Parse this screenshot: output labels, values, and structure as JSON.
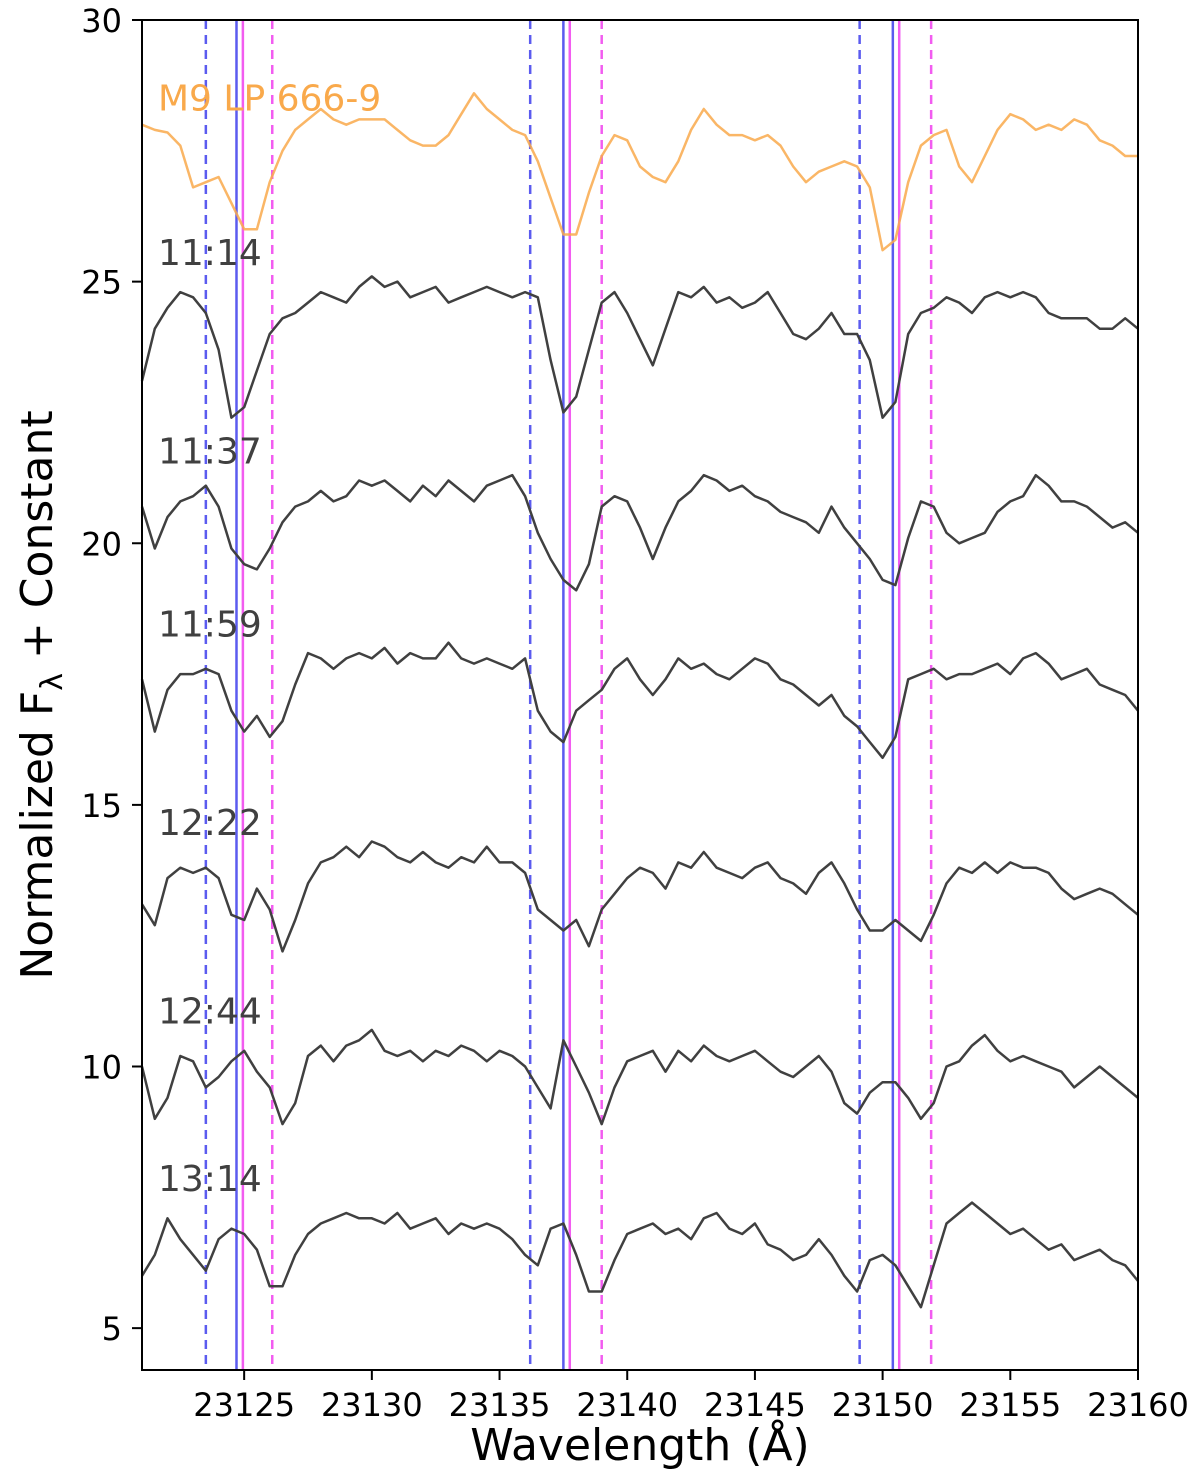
{
  "chart_data": {
    "type": "line",
    "xlabel": "Wavelength (Å)",
    "ylabel": "Normalized F",
    "ylabel_sub": "λ",
    "ylabel_suffix": " + Constant",
    "xlim": [
      23121,
      23160
    ],
    "ylim": [
      4.2,
      30
    ],
    "xticks": [
      23125,
      23130,
      23135,
      23140,
      23145,
      23150,
      23155,
      23160
    ],
    "yticks": [
      5,
      10,
      15,
      20,
      25,
      30
    ],
    "grid": false,
    "colors": {
      "reference": "#f9a94b",
      "spectrum": "#404040",
      "blue_line": "#5b5bef",
      "magenta_line": "#f25cf0"
    },
    "vertical_lines": [
      {
        "x": 23123.5,
        "color": "blue",
        "style": "dashed"
      },
      {
        "x": 23124.7,
        "color": "blue",
        "style": "solid"
      },
      {
        "x": 23124.95,
        "color": "magenta",
        "style": "solid"
      },
      {
        "x": 23126.1,
        "color": "magenta",
        "style": "dashed"
      },
      {
        "x": 23136.2,
        "color": "blue",
        "style": "dashed"
      },
      {
        "x": 23137.5,
        "color": "blue",
        "style": "solid"
      },
      {
        "x": 23137.75,
        "color": "magenta",
        "style": "solid"
      },
      {
        "x": 23139.0,
        "color": "magenta",
        "style": "dashed"
      },
      {
        "x": 23149.1,
        "color": "blue",
        "style": "dashed"
      },
      {
        "x": 23150.4,
        "color": "blue",
        "style": "solid"
      },
      {
        "x": 23150.65,
        "color": "magenta",
        "style": "solid"
      },
      {
        "x": 23151.9,
        "color": "magenta",
        "style": "dashed"
      }
    ],
    "reference_x": [
      23121,
      23121.5,
      23122,
      23122.5,
      23123,
      23123.5,
      23124,
      23124.5,
      23125,
      23125.5,
      23126,
      23126.5,
      23127,
      23127.5,
      23128,
      23128.5,
      23129,
      23129.5,
      23130,
      23130.5,
      23131,
      23131.5,
      23132,
      23132.5,
      23133,
      23133.5,
      23134,
      23134.5,
      23135,
      23135.5,
      23136,
      23136.5,
      23137,
      23137.5,
      23138,
      23138.5,
      23139,
      23139.5,
      23140,
      23140.5,
      23141,
      23141.5,
      23142,
      23142.5,
      23143,
      23143.5,
      23144,
      23144.5,
      23145,
      23145.5,
      23146,
      23146.5,
      23147,
      23147.5,
      23148,
      23148.5,
      23149,
      23149.5,
      23150,
      23150.5,
      23151,
      23151.5,
      23152,
      23152.5,
      23153,
      23153.5,
      23154,
      23154.5,
      23155,
      23155.5,
      23156,
      23156.5,
      23157,
      23157.5,
      23158,
      23158.5,
      23159,
      23159.5,
      23160
    ],
    "series": [
      {
        "name": "M9 LP 666-9",
        "values": [
          28.0,
          27.9,
          27.85,
          27.6,
          26.8,
          26.9,
          27.0,
          26.5,
          26.0,
          26.0,
          26.9,
          27.5,
          27.9,
          28.1,
          28.3,
          28.1,
          28.0,
          28.1,
          28.1,
          28.1,
          27.9,
          27.7,
          27.6,
          27.6,
          27.8,
          28.2,
          28.6,
          28.3,
          28.1,
          27.9,
          27.8,
          27.3,
          26.6,
          25.9,
          25.9,
          26.7,
          27.4,
          27.8,
          27.7,
          27.2,
          27.0,
          26.9,
          27.3,
          27.9,
          28.3,
          28.0,
          27.8,
          27.8,
          27.7,
          27.8,
          27.6,
          27.2,
          26.9,
          27.1,
          27.2,
          27.3,
          27.2,
          26.8,
          25.6,
          25.8,
          26.9,
          27.6,
          27.8,
          27.9,
          27.2,
          26.9,
          27.4,
          27.9,
          28.2,
          28.1,
          27.9,
          28.0,
          27.9,
          28.1,
          28.0,
          27.7,
          27.6,
          27.4,
          27.4
        ]
      },
      {
        "name": "11:14",
        "offset": 24.3,
        "values": [
          -1.2,
          -0.2,
          0.2,
          0.5,
          0.4,
          0.1,
          -0.6,
          -1.9,
          -1.7,
          -1.0,
          -0.3,
          0,
          0.1,
          0.3,
          0.5,
          0.4,
          0.3,
          0.6,
          0.8,
          0.6,
          0.7,
          0.4,
          0.5,
          0.6,
          0.3,
          0.4,
          0.5,
          0.6,
          0.5,
          0.4,
          0.5,
          0.4,
          -0.8,
          -1.8,
          -1.5,
          -0.6,
          0.3,
          0.5,
          0.1,
          -0.4,
          -0.9,
          -0.2,
          0.5,
          0.4,
          0.6,
          0.3,
          0.4,
          0.2,
          0.3,
          0.5,
          0.1,
          -0.3,
          -0.4,
          -0.2,
          0.1,
          -0.3,
          -0.3,
          -0.8,
          -1.9,
          -1.6,
          -0.3,
          0.1,
          0.2,
          0.4,
          0.3,
          0.1,
          0.4,
          0.5,
          0.4,
          0.5,
          0.4,
          0.1,
          0.0,
          0.0,
          0.0,
          -0.2,
          -0.2,
          0.0,
          -0.2
        ]
      },
      {
        "name": "11:37",
        "offset": 20.5,
        "values": [
          0.2,
          -0.6,
          0.0,
          0.3,
          0.4,
          0.6,
          0.2,
          -0.6,
          -0.9,
          -1.0,
          -0.6,
          -0.1,
          0.2,
          0.3,
          0.5,
          0.3,
          0.4,
          0.7,
          0.6,
          0.7,
          0.5,
          0.3,
          0.6,
          0.4,
          0.7,
          0.5,
          0.3,
          0.6,
          0.7,
          0.8,
          0.4,
          -0.3,
          -0.8,
          -1.2,
          -1.4,
          -0.9,
          0.2,
          0.4,
          0.3,
          -0.2,
          -0.8,
          -0.2,
          0.3,
          0.5,
          0.8,
          0.7,
          0.5,
          0.6,
          0.4,
          0.3,
          0.1,
          0.0,
          -0.1,
          -0.3,
          0.2,
          -0.2,
          -0.5,
          -0.8,
          -1.2,
          -1.3,
          -0.4,
          0.3,
          0.2,
          -0.3,
          -0.5,
          -0.4,
          -0.3,
          0.1,
          0.3,
          0.4,
          0.8,
          0.6,
          0.3,
          0.3,
          0.2,
          0.0,
          -0.2,
          -0.1,
          -0.3
        ]
      },
      {
        "name": "11:59",
        "offset": 17.2,
        "values": [
          0.2,
          -0.8,
          0.0,
          0.3,
          0.3,
          0.4,
          0.3,
          -0.4,
          -0.8,
          -0.5,
          -0.9,
          -0.6,
          0.1,
          0.7,
          0.6,
          0.4,
          0.6,
          0.7,
          0.6,
          0.8,
          0.5,
          0.7,
          0.6,
          0.6,
          0.9,
          0.6,
          0.5,
          0.6,
          0.5,
          0.4,
          0.6,
          -0.4,
          -0.8,
          -1.0,
          -0.4,
          -0.2,
          0.0,
          0.4,
          0.6,
          0.2,
          -0.1,
          0.2,
          0.6,
          0.4,
          0.5,
          0.3,
          0.2,
          0.4,
          0.6,
          0.5,
          0.2,
          0.1,
          -0.1,
          -0.3,
          -0.1,
          -0.5,
          -0.7,
          -1.0,
          -1.3,
          -0.9,
          0.2,
          0.3,
          0.4,
          0.2,
          0.3,
          0.3,
          0.4,
          0.5,
          0.3,
          0.6,
          0.7,
          0.5,
          0.2,
          0.3,
          0.4,
          0.1,
          0.0,
          -0.1,
          -0.4
        ]
      },
      {
        "name": "12:22",
        "offset": 13.4,
        "values": [
          -0.3,
          -0.7,
          0.2,
          0.4,
          0.3,
          0.4,
          0.2,
          -0.5,
          -0.6,
          0.0,
          -0.4,
          -1.2,
          -0.6,
          0.1,
          0.5,
          0.6,
          0.8,
          0.6,
          0.9,
          0.8,
          0.6,
          0.5,
          0.7,
          0.5,
          0.4,
          0.6,
          0.5,
          0.8,
          0.5,
          0.5,
          0.3,
          -0.4,
          -0.6,
          -0.8,
          -0.6,
          -1.1,
          -0.4,
          -0.1,
          0.2,
          0.4,
          0.3,
          0.0,
          0.5,
          0.4,
          0.7,
          0.4,
          0.3,
          0.2,
          0.4,
          0.5,
          0.2,
          0.1,
          -0.1,
          0.3,
          0.5,
          0.1,
          -0.4,
          -0.8,
          -0.8,
          -0.6,
          -0.8,
          -1.0,
          -0.5,
          0.1,
          0.4,
          0.3,
          0.5,
          0.3,
          0.5,
          0.4,
          0.4,
          0.3,
          0.0,
          -0.2,
          -0.1,
          0.0,
          -0.1,
          -0.3,
          -0.5
        ]
      },
      {
        "name": "12:44",
        "offset": 9.8,
        "values": [
          0.2,
          -0.8,
          -0.4,
          0.4,
          0.3,
          -0.2,
          0.0,
          0.3,
          0.5,
          0.1,
          -0.2,
          -0.9,
          -0.5,
          0.4,
          0.6,
          0.3,
          0.6,
          0.7,
          0.9,
          0.5,
          0.4,
          0.5,
          0.3,
          0.5,
          0.4,
          0.6,
          0.5,
          0.3,
          0.5,
          0.4,
          0.2,
          -0.2,
          -0.6,
          0.7,
          0.2,
          -0.3,
          -0.9,
          -0.2,
          0.3,
          0.4,
          0.5,
          0.1,
          0.5,
          0.3,
          0.6,
          0.4,
          0.3,
          0.4,
          0.5,
          0.3,
          0.1,
          0.0,
          0.2,
          0.4,
          0.1,
          -0.5,
          -0.7,
          -0.3,
          -0.1,
          -0.1,
          -0.4,
          -0.8,
          -0.5,
          0.2,
          0.3,
          0.6,
          0.8,
          0.5,
          0.3,
          0.4,
          0.3,
          0.2,
          0.1,
          -0.2,
          0.0,
          0.2,
          0.0,
          -0.2,
          -0.4
        ]
      },
      {
        "name": "13:14",
        "offset": 6.6,
        "values": [
          -0.6,
          -0.2,
          0.5,
          0.1,
          -0.2,
          -0.5,
          0.1,
          0.3,
          0.2,
          -0.1,
          -0.8,
          -0.8,
          -0.2,
          0.2,
          0.4,
          0.5,
          0.6,
          0.5,
          0.5,
          0.4,
          0.6,
          0.3,
          0.4,
          0.5,
          0.2,
          0.4,
          0.3,
          0.4,
          0.3,
          0.1,
          -0.2,
          -0.4,
          0.3,
          0.4,
          -0.2,
          -0.9,
          -0.9,
          -0.3,
          0.2,
          0.3,
          0.4,
          0.2,
          0.3,
          0.1,
          0.5,
          0.6,
          0.3,
          0.2,
          0.4,
          0.0,
          -0.1,
          -0.3,
          -0.2,
          0.1,
          -0.2,
          -0.6,
          -0.9,
          -0.3,
          -0.2,
          -0.4,
          -0.8,
          -1.2,
          -0.4,
          0.4,
          0.6,
          0.8,
          0.6,
          0.4,
          0.2,
          0.3,
          0.1,
          -0.1,
          0.0,
          -0.3,
          -0.2,
          -0.1,
          -0.3,
          -0.4,
          -0.7
        ]
      }
    ]
  }
}
